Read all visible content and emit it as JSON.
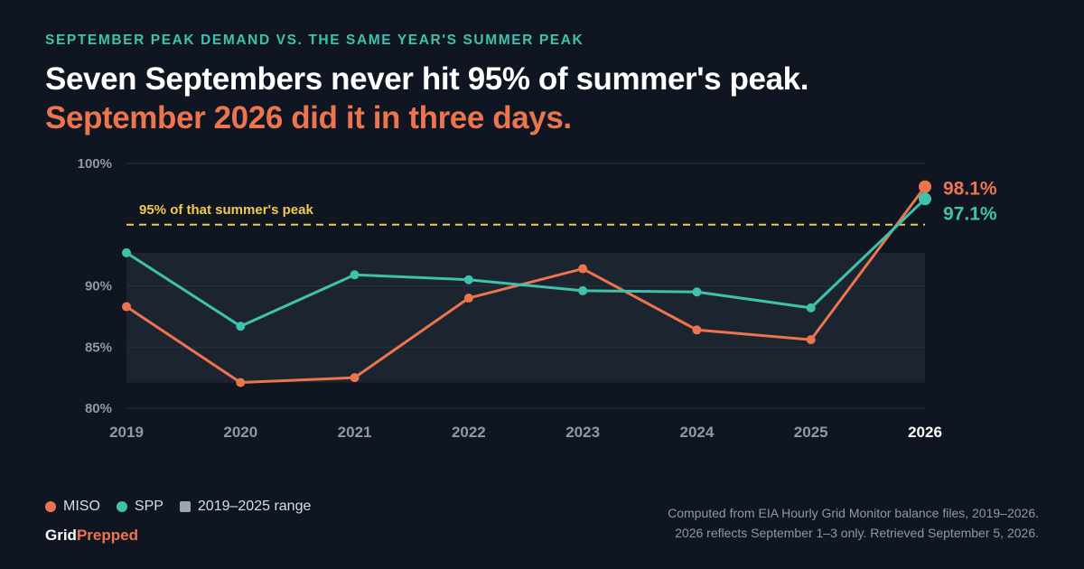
{
  "header": {
    "kicker": "SEPTEMBER PEAK DEMAND VS. THE SAME YEAR'S SUMMER PEAK",
    "title_line1": "Seven Septembers never hit 95% of summer's peak.",
    "title_line2": "September 2026 did it in three days."
  },
  "colors": {
    "background": "#0f1622",
    "miso": "#ec7550",
    "spp": "#3ec2ac",
    "range": "#9aa6b8",
    "threshold": "#f2c94c",
    "kicker": "#3ec2ac"
  },
  "chart_data": {
    "type": "line",
    "x": [
      "2019",
      "2020",
      "2021",
      "2022",
      "2023",
      "2024",
      "2025",
      "2026"
    ],
    "ylim": [
      80,
      100
    ],
    "yticks": [
      {
        "value": 80,
        "label": "80%"
      },
      {
        "value": 85,
        "label": "85%"
      },
      {
        "value": 90,
        "label": "90%"
      },
      {
        "value": 100,
        "label": "100%"
      }
    ],
    "grid": true,
    "series": [
      {
        "name": "MISO",
        "color": "#ec7550",
        "values": [
          88.3,
          82.1,
          82.5,
          89.0,
          91.4,
          86.4,
          85.6,
          98.1
        ]
      },
      {
        "name": "SPP",
        "color": "#3ec2ac",
        "values": [
          92.7,
          86.7,
          90.9,
          90.5,
          89.6,
          89.5,
          88.2,
          97.1
        ]
      }
    ],
    "range_band": {
      "name": "2019–2025 range",
      "min": 82.1,
      "max": 92.7
    },
    "threshold": {
      "value": 95,
      "label": "95% of that summer's peak"
    },
    "end_labels": [
      {
        "series": "MISO",
        "text": "98.1%"
      },
      {
        "series": "SPP",
        "text": "97.1%"
      }
    ],
    "highlight_category": "2026",
    "legend": "bottom-left"
  },
  "legend": {
    "miso": "MISO",
    "spp": "SPP",
    "range": "2019–2025 range"
  },
  "brand": {
    "part1": "Grid",
    "part2": "Prepped"
  },
  "footnote": {
    "line1": "Computed from EIA Hourly Grid Monitor balance files, 2019–2026.",
    "line2": "2026 reflects September 1–3 only. Retrieved September 5, 2026."
  }
}
